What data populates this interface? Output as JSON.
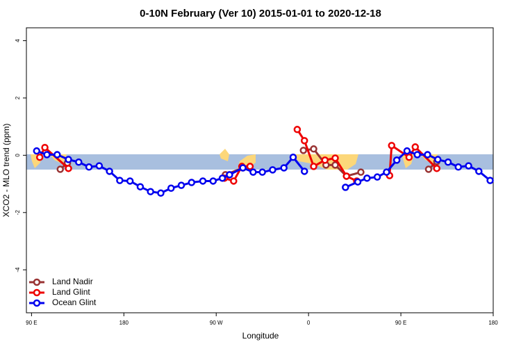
{
  "chart_data": {
    "type": "line",
    "title": "0-10N February (Ver 10)   2015-01-01 to 2020-12-18",
    "x_label": "Longitude",
    "y_label": "XCO2 - MLO trend (ppm)",
    "xlim": [
      85,
      540
    ],
    "ylim": [
      -5.5,
      4.45
    ],
    "xticks": [
      {
        "value": 90,
        "label": "90 E"
      },
      {
        "value": 180,
        "label": "180"
      },
      {
        "value": 270,
        "label": "90 W"
      },
      {
        "value": 360,
        "label": "0"
      },
      {
        "value": 450,
        "label": "90 E"
      },
      {
        "value": 540,
        "label": "180"
      }
    ],
    "yticks": [
      -4,
      -2,
      0,
      2,
      4
    ],
    "legend": "bottom-left",
    "series": [
      {
        "name": "Land Nadir",
        "color": "#993333",
        "x": [
          118,
          125,
          null,
          279,
          296,
          null,
          355,
          365,
          377,
          386,
          397,
          411,
          null,
          477,
          485
        ],
        "values": [
          -0.49,
          -0.27,
          null,
          -0.68,
          -0.44,
          null,
          0.17,
          0.22,
          -0.34,
          -0.34,
          -0.73,
          -0.59,
          null,
          -0.49,
          -0.22
        ]
      },
      {
        "name": "Land Glint",
        "color": "#ee0000",
        "x": [
          98,
          103,
          126,
          null,
          278,
          287,
          295,
          303,
          null,
          349,
          356,
          365,
          376,
          386,
          397,
          407,
          null,
          439,
          441,
          458,
          464,
          485
        ],
        "values": [
          -0.07,
          0.27,
          -0.46,
          null,
          -0.8,
          -0.9,
          -0.39,
          -0.39,
          null,
          0.9,
          0.51,
          -0.39,
          -0.17,
          -0.1,
          -0.73,
          -0.9,
          null,
          -0.71,
          0.34,
          -0.07,
          0.29,
          -0.46
        ]
      },
      {
        "name": "Ocean Glint",
        "color": "#0000ee",
        "x": [
          95,
          105,
          115,
          126,
          136,
          146,
          156,
          166,
          176,
          186,
          196,
          206,
          216,
          226,
          236,
          246,
          257,
          267,
          276,
          283,
          296,
          306,
          315,
          325,
          336,
          345,
          356,
          null,
          396,
          408,
          417,
          427,
          436,
          446,
          456,
          466,
          476,
          486,
          496,
          506,
          516,
          526,
          537
        ],
        "values": [
          0.15,
          0.02,
          0.02,
          -0.15,
          -0.24,
          -0.41,
          -0.37,
          -0.56,
          -0.88,
          -0.9,
          -1.1,
          -1.27,
          -1.32,
          -1.15,
          -1.05,
          -0.95,
          -0.9,
          -0.9,
          -0.8,
          -0.68,
          -0.44,
          -0.59,
          -0.59,
          -0.51,
          -0.44,
          -0.07,
          -0.56,
          null,
          -1.12,
          -0.93,
          -0.8,
          -0.76,
          -0.59,
          -0.17,
          0.15,
          0.02,
          0.02,
          -0.15,
          -0.24,
          -0.41,
          -0.37,
          -0.56,
          -0.88
        ]
      }
    ]
  }
}
